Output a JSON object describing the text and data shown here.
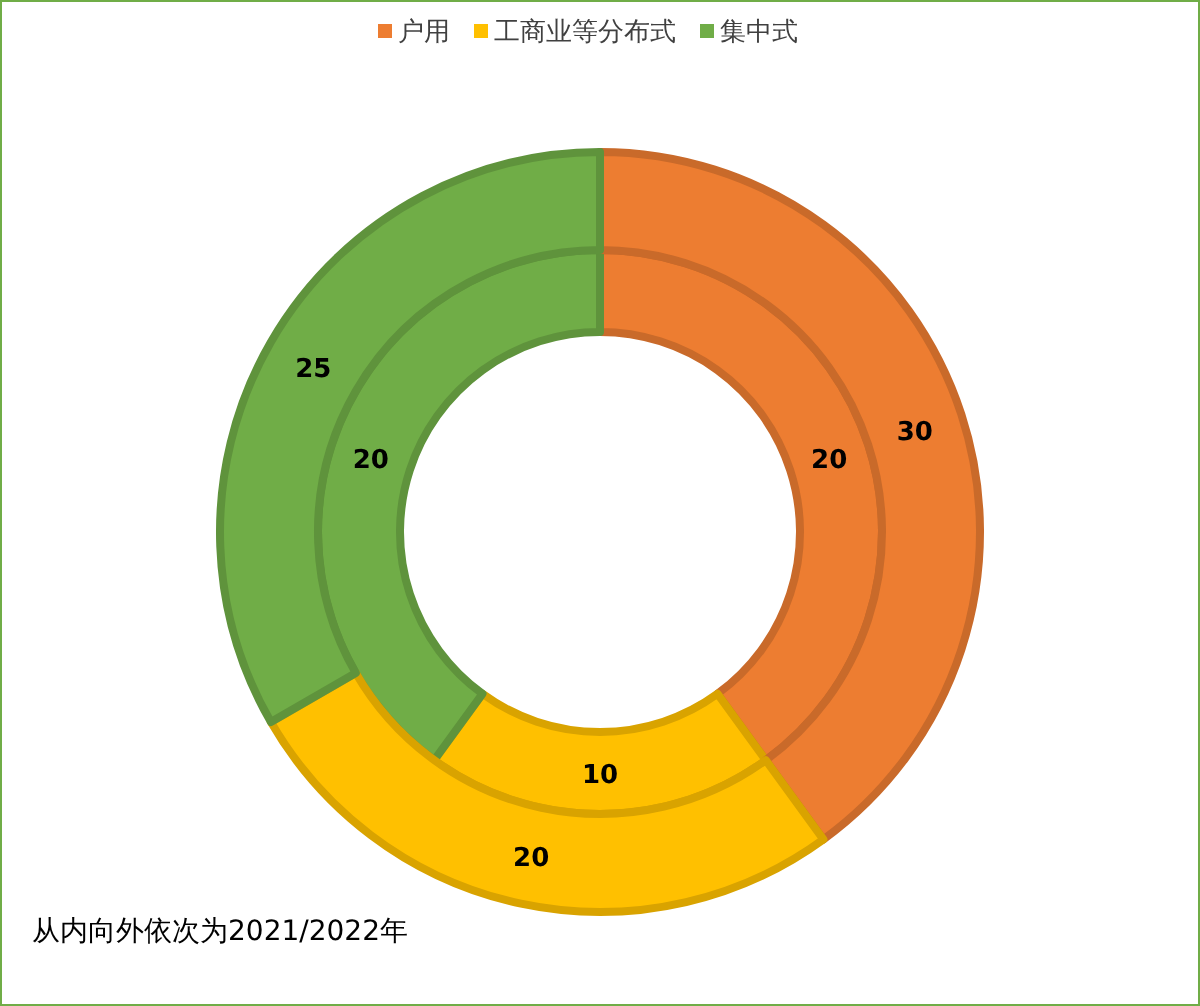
{
  "chart_data": {
    "type": "donut",
    "categories": [
      "户用",
      "工商业等分布式",
      "集中式"
    ],
    "colors": [
      "#ed7d31",
      "#ffc000",
      "#70ad47"
    ],
    "series": [
      {
        "values": [
          20,
          10,
          20
        ]
      },
      {
        "values": [
          30,
          20,
          25
        ]
      }
    ],
    "data_labels": true,
    "legend": "top",
    "annotations": [
      "从内向外依次为2021/2022年"
    ]
  }
}
